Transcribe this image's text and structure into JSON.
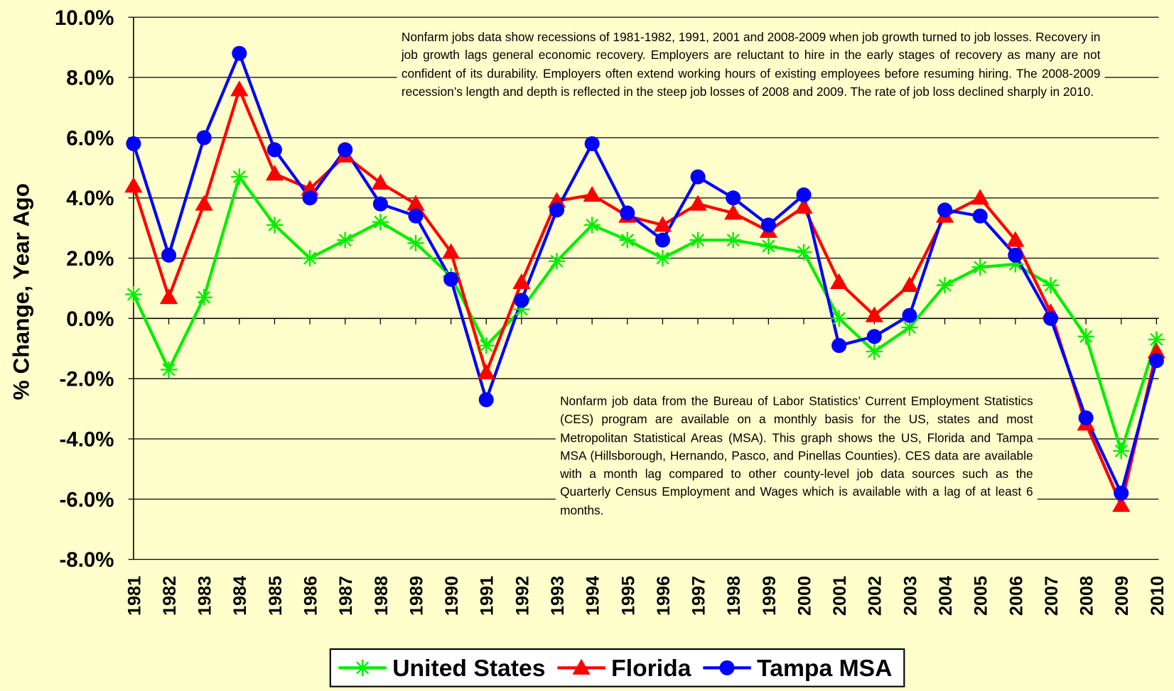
{
  "chart_data": {
    "type": "line",
    "y_label": "% Change, Year Ago",
    "annotations": [
      "Nonfarm jobs data show recessions of 1981-1982, 1991, 2001 and 2008-2009 when job growth turned to job losses.  Recovery in job growth lags general economic recovery.  Employers are reluctant to hire in the early stages of recovery as many are not confident of its durability.  Employers often extend working hours of existing employees before resuming hiring.  The 2008-2009 recession’s length and depth is reflected in the steep job losses of 2008 and 2009.  The rate of job loss declined sharply in 2010.",
      "Nonfarm job data from the Bureau of Labor Statistics’ Current Employment Statistics (CES) program are available on a monthly basis for the US, states and most Metropolitan Statistical Areas (MSA).  This graph shows the US, Florida and Tampa MSA (Hillsborough, Hernando, Pasco, and Pinellas Counties).  CES data are available with a month lag compared to other county-level job data sources such as the Quarterly Census Employment and Wages which is available with a lag of at least 6 months."
    ],
    "categories": [
      "1981",
      "1982",
      "1983",
      "1984",
      "1985",
      "1986",
      "1987",
      "1988",
      "1989",
      "1990",
      "1991",
      "1992",
      "1993",
      "1994",
      "1995",
      "1996",
      "1997",
      "1998",
      "1999",
      "2000",
      "2001",
      "2002",
      "2003",
      "2004",
      "2005",
      "2006",
      "2007",
      "2008",
      "2009",
      "2010"
    ],
    "series": [
      {
        "name": "United States",
        "color": "#00ee00",
        "marker": "asterisk",
        "values": [
          0.8,
          -1.7,
          0.7,
          4.7,
          3.1,
          2.0,
          2.6,
          3.2,
          2.5,
          1.4,
          -0.9,
          0.3,
          1.9,
          3.1,
          2.6,
          2.0,
          2.6,
          2.6,
          2.4,
          2.2,
          0.0,
          -1.1,
          -0.3,
          1.1,
          1.7,
          1.8,
          1.1,
          -0.6,
          -4.4,
          -0.7
        ]
      },
      {
        "name": "Florida",
        "color": "#ff0000",
        "marker": "triangle",
        "values": [
          4.4,
          0.7,
          3.8,
          7.6,
          4.8,
          4.3,
          5.4,
          4.5,
          3.8,
          2.2,
          -1.8,
          1.2,
          3.9,
          4.1,
          3.4,
          3.1,
          3.8,
          3.5,
          2.9,
          3.7,
          1.2,
          0.1,
          1.1,
          3.4,
          4.0,
          2.6,
          0.2,
          -3.5,
          -6.2,
          -1.1
        ]
      },
      {
        "name": "Tampa MSA",
        "color": "#0000ff",
        "marker": "circle",
        "values": [
          5.8,
          2.1,
          6.0,
          8.8,
          5.6,
          4.0,
          5.6,
          3.8,
          3.4,
          1.3,
          -2.7,
          0.6,
          3.6,
          5.8,
          3.5,
          2.6,
          4.7,
          4.0,
          3.1,
          4.1,
          -0.9,
          -0.6,
          0.1,
          3.6,
          3.4,
          2.1,
          0.0,
          -3.3,
          -5.8,
          -1.4
        ]
      }
    ],
    "ylim": [
      -8,
      10
    ],
    "yticks": [
      {
        "value": -8,
        "label": "-8.0%"
      },
      {
        "value": -6,
        "label": "-6.0%"
      },
      {
        "value": -4,
        "label": "-4.0%"
      },
      {
        "value": -2,
        "label": "-2.0%"
      },
      {
        "value": 0,
        "label": "0.0%"
      },
      {
        "value": 2,
        "label": "2.0%"
      },
      {
        "value": 4,
        "label": "4.0%"
      },
      {
        "value": 6,
        "label": "6.0%"
      },
      {
        "value": 8,
        "label": "8.0%"
      },
      {
        "value": 10,
        "label": "10.0%"
      }
    ],
    "grid": true,
    "legend": "bottom"
  }
}
